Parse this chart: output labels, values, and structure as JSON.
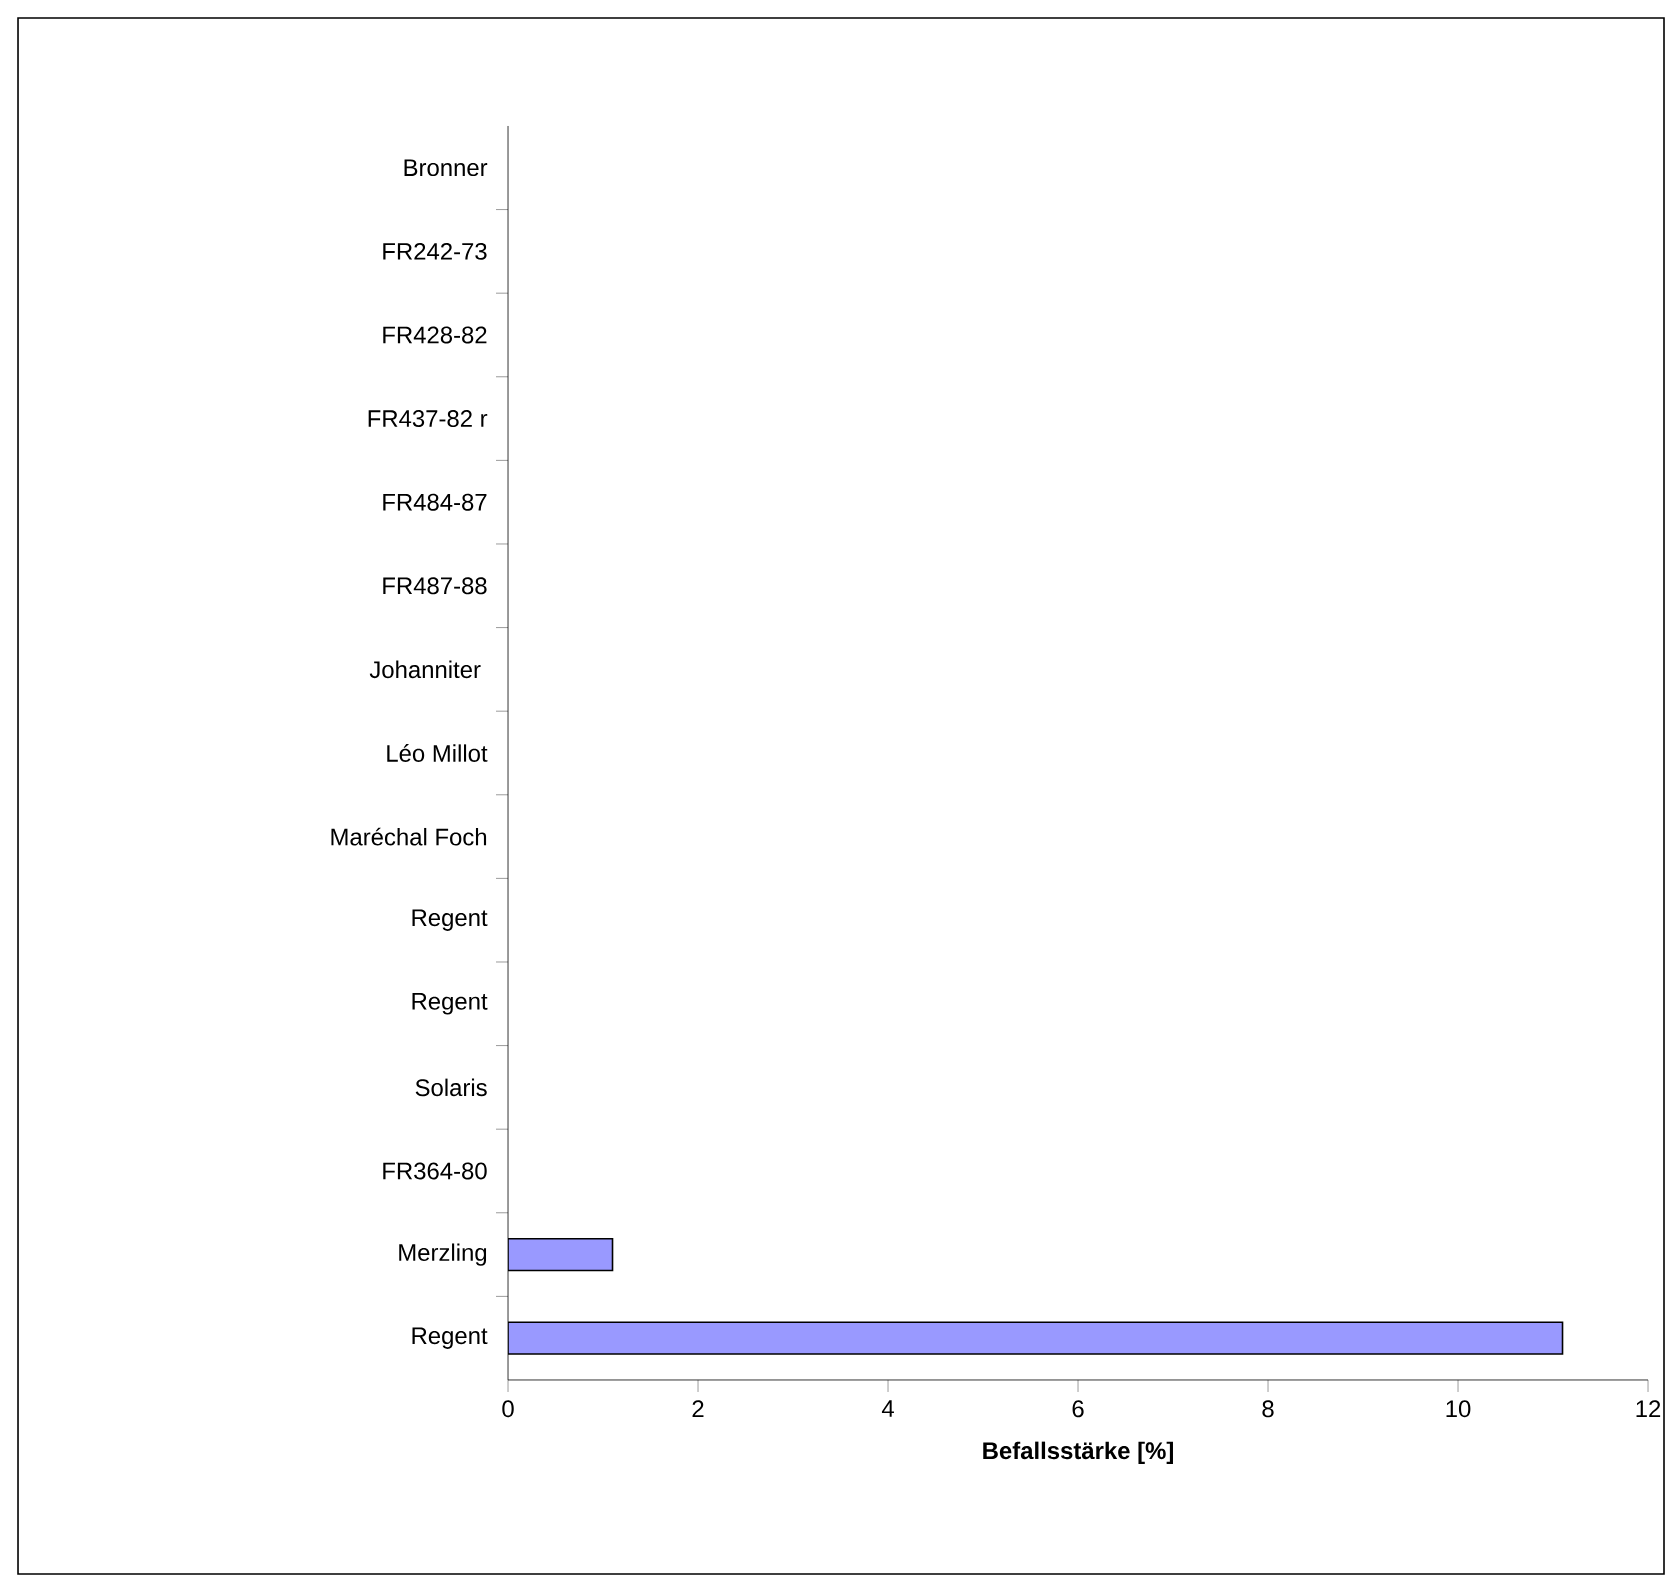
{
  "chart_data": {
    "type": "bar",
    "orientation": "horizontal",
    "xlabel": "Befallsstärke [%]",
    "categories": [
      "Bronner",
      "FR242-73",
      "FR428-82",
      "FR437-82 r",
      "FR484-87",
      "FR487-88",
      "Johanniter ",
      "Léo Millot",
      "Maréchal Foch",
      "Regent",
      "Regent",
      "Solaris",
      "FR364-80",
      "Merzling",
      "Regent"
    ],
    "values": [
      0,
      0,
      0,
      0,
      0,
      0,
      0,
      0,
      0,
      0,
      0,
      0,
      0,
      1.1,
      11.1
    ],
    "color": "#9999ff",
    "xlim": [
      0,
      12
    ],
    "xticks": [
      0,
      2,
      4,
      6,
      8,
      10,
      12
    ],
    "grid": false
  }
}
